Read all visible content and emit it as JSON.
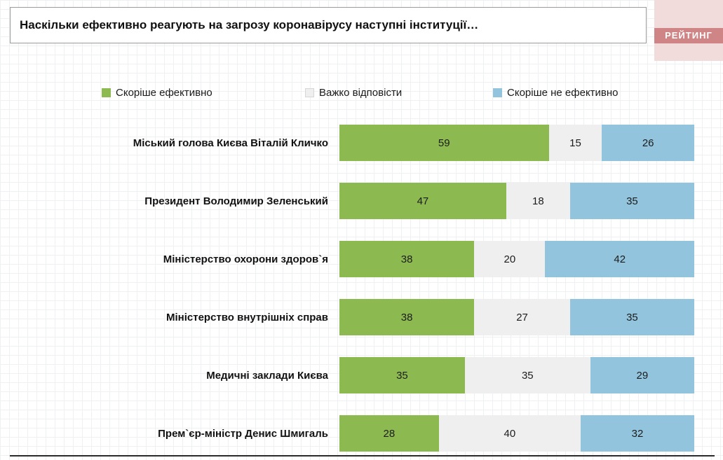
{
  "logo": {
    "text": "РЕЙТИНГ"
  },
  "chart_data": {
    "type": "bar",
    "orientation": "horizontal",
    "stacked": true,
    "title": "Наскільки ефективно реагують на загрозу коронавірусу наступні інституції…",
    "categories": [
      "Міський голова Києва Віталій Кличко",
      "Президент Володимир Зеленський",
      "Міністерство охорони здоров`я",
      "Міністерство внутрішніх справ",
      "Медичні заклади Києва",
      "Прем`єр-міністр Денис Шмигаль"
    ],
    "series": [
      {
        "name": "Скоріше ефективно",
        "color": "#8cba50",
        "values": [
          59,
          47,
          38,
          38,
          35,
          28
        ]
      },
      {
        "name": "Важко відповісти",
        "color": "#efefef",
        "values": [
          15,
          18,
          20,
          27,
          35,
          40
        ]
      },
      {
        "name": "Скоріше не ефективно",
        "color": "#92c5dd",
        "values": [
          26,
          35,
          42,
          35,
          29,
          32
        ]
      }
    ],
    "xlim": [
      0,
      100
    ],
    "legend_position": "top",
    "value_labels": "inside-center"
  }
}
